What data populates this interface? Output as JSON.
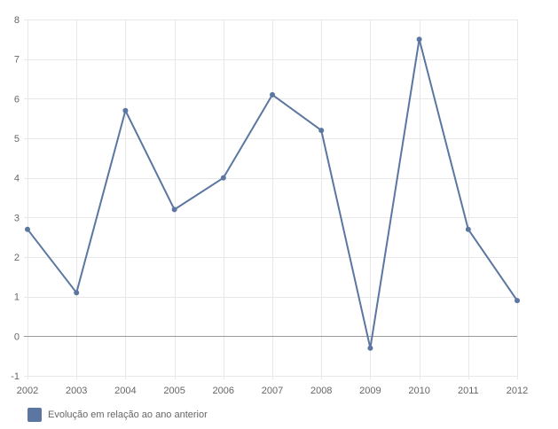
{
  "chart_data": {
    "type": "line",
    "x": [
      "2002",
      "2003",
      "2004",
      "2005",
      "2006",
      "2007",
      "2008",
      "2009",
      "2010",
      "2011",
      "2012"
    ],
    "series": [
      {
        "name": "Evolução em relação ao ano anterior",
        "values": [
          2.7,
          1.1,
          5.7,
          3.2,
          4.0,
          6.1,
          5.2,
          -0.3,
          7.5,
          2.7,
          0.9
        ]
      }
    ],
    "ylim": [
      -1,
      8
    ],
    "yticks": [
      "-1",
      "0",
      "1",
      "2",
      "3",
      "4",
      "5",
      "6",
      "7",
      "8"
    ],
    "grid": true,
    "legend_position": "bottom-left",
    "title": "",
    "xlabel": "",
    "ylabel": ""
  },
  "colors": {
    "series": "#5b76a0",
    "grid": "#e8e8e8",
    "axis": "#999999",
    "text": "#666666"
  }
}
